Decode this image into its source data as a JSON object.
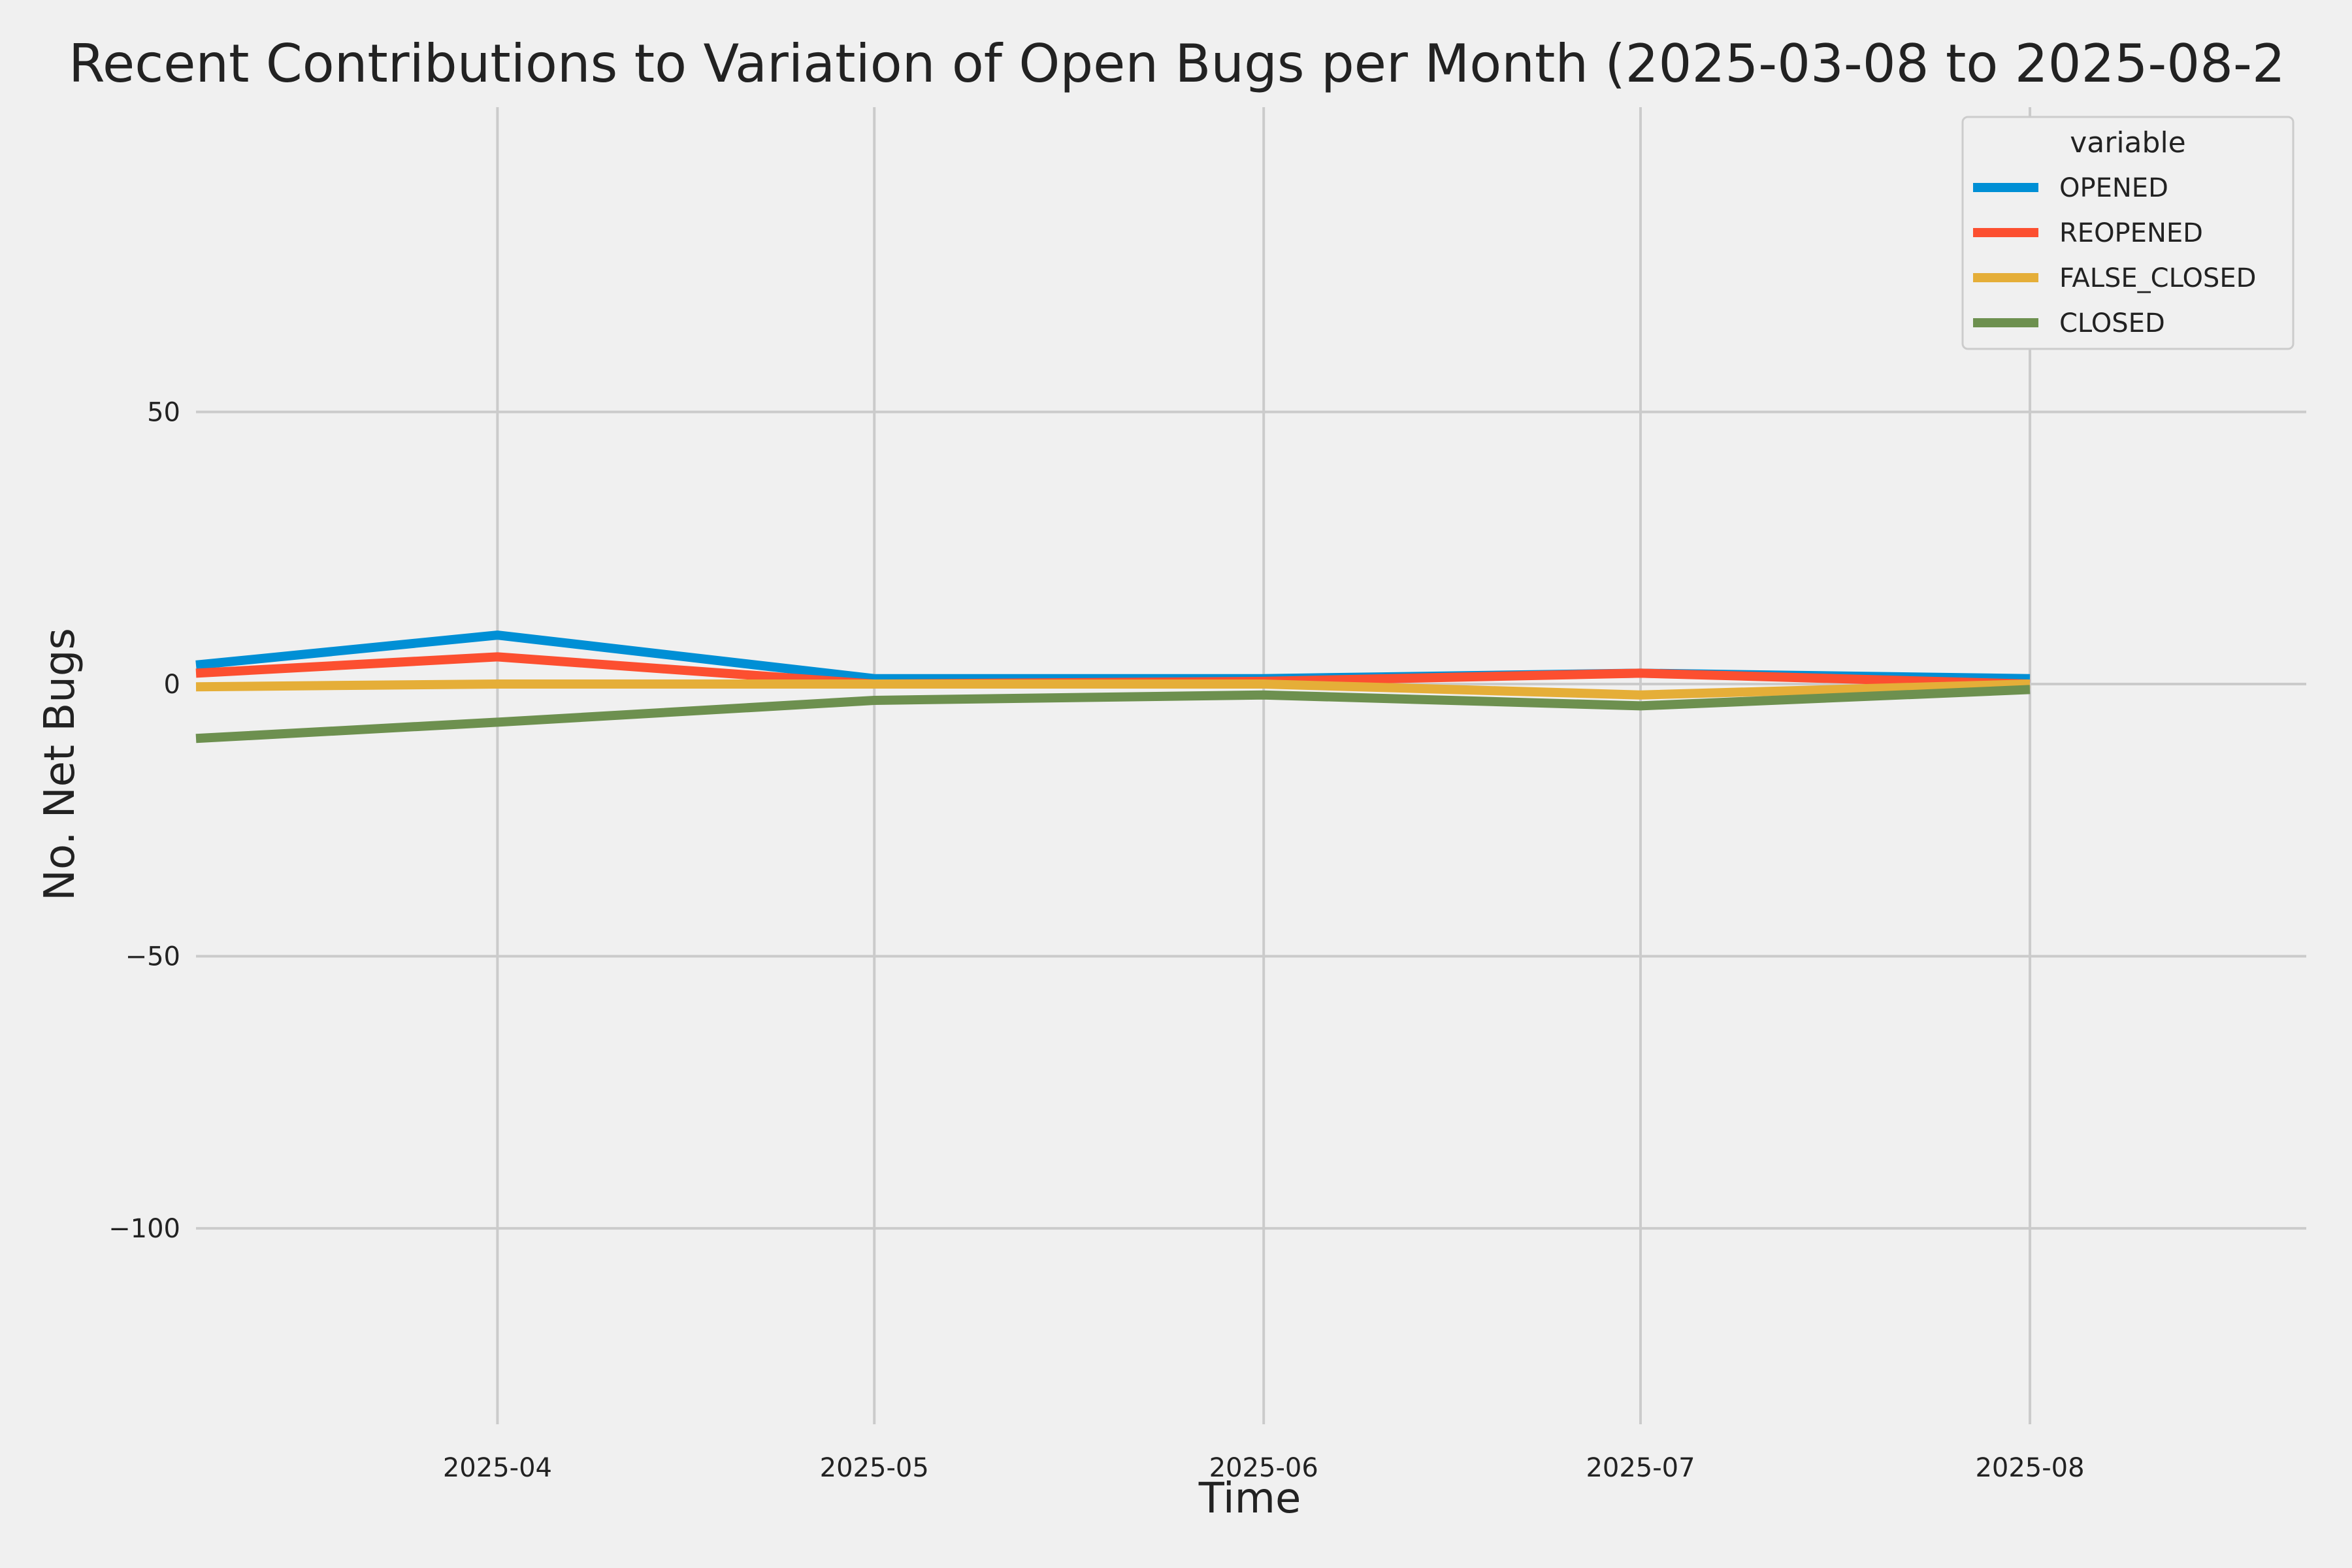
{
  "chart_data": {
    "type": "line",
    "title": "Recent Contributions to Variation of Open Bugs per Month (2025-03-08 to 2025-08-2",
    "xlabel": "Time",
    "ylabel": "No. Net Bugs",
    "x": [
      "2025-03-08",
      "2025-04-01",
      "2025-05-01",
      "2025-06-01",
      "2025-07-01",
      "2025-08-01"
    ],
    "xlim": [
      "2025-03-08",
      "2025-08-23"
    ],
    "ylim": [
      -136,
      106
    ],
    "x_ticks": [
      {
        "value": "2025-04-01",
        "label": "2025-04"
      },
      {
        "value": "2025-05-01",
        "label": "2025-05"
      },
      {
        "value": "2025-06-01",
        "label": "2025-06"
      },
      {
        "value": "2025-07-01",
        "label": "2025-07"
      },
      {
        "value": "2025-08-01",
        "label": "2025-08"
      }
    ],
    "y_ticks": [
      {
        "value": 50,
        "label": "50"
      },
      {
        "value": 0,
        "label": "0"
      },
      {
        "value": -50,
        "label": "−50"
      },
      {
        "value": -100,
        "label": "−100"
      }
    ],
    "grid": true,
    "legend": {
      "title": "variable",
      "placement": "top-right"
    },
    "series": [
      {
        "name": "OPENED",
        "color": "#008fd5",
        "values": [
          3.5,
          9,
          1,
          1,
          2,
          1
        ]
      },
      {
        "name": "REOPENED",
        "color": "#fc4f30",
        "values": [
          2,
          5,
          0,
          0.5,
          2,
          0
        ]
      },
      {
        "name": "FALSE_CLOSED",
        "color": "#e5ae38",
        "values": [
          -0.5,
          0,
          0,
          0,
          -2,
          0
        ]
      },
      {
        "name": "CLOSED",
        "color": "#6d904f",
        "values": [
          -10,
          -7,
          -3,
          -2,
          -4,
          -1
        ]
      }
    ]
  }
}
